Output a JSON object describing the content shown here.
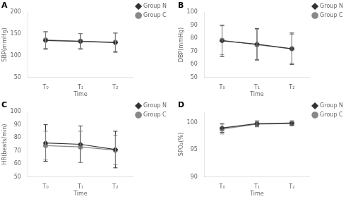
{
  "chart_data": [
    {
      "type": "line",
      "title": "A",
      "x_label": "Time",
      "y_label": "SBP(mmHg)",
      "categories": [
        "T₀",
        "T₁",
        "T₂"
      ],
      "ylim": [
        50,
        200
      ],
      "yticks": [
        50,
        100,
        150,
        200
      ],
      "grid": false,
      "legend": "right",
      "series": [
        {
          "name": "Group N",
          "color": "#333333",
          "marker": "diamond",
          "values": [
            135,
            133,
            130
          ],
          "errors": [
            20,
            18,
            22
          ]
        },
        {
          "name": "Group C",
          "color": "#888888",
          "marker": "circle",
          "values": [
            136,
            133.5,
            131
          ],
          "errors": [
            19,
            17,
            21
          ]
        }
      ]
    },
    {
      "type": "line",
      "title": "B",
      "x_label": "Time",
      "y_label": "DBP(mmHg)",
      "categories": [
        "T₀",
        "T₁",
        "T₂"
      ],
      "ylim": [
        50,
        100
      ],
      "yticks": [
        50,
        60,
        70,
        80,
        90,
        100
      ],
      "grid": false,
      "legend": "right",
      "series": [
        {
          "name": "Group N",
          "color": "#333333",
          "marker": "diamond",
          "values": [
            78,
            75.5,
            72
          ],
          "errors": [
            12,
            12,
            12
          ]
        },
        {
          "name": "Group C",
          "color": "#888888",
          "marker": "circle",
          "values": [
            78.5,
            75,
            72
          ],
          "errors": [
            11,
            12,
            11
          ]
        }
      ]
    },
    {
      "type": "line",
      "title": "C",
      "x_label": "Time",
      "y_label": "HR(beats/min)",
      "categories": [
        "T₀",
        "T₁",
        "T₂"
      ],
      "ylim": [
        50,
        100
      ],
      "yticks": [
        50,
        60,
        70,
        80,
        90,
        100
      ],
      "grid": false,
      "legend": "right",
      "series": [
        {
          "name": "Group N",
          "color": "#333333",
          "marker": "diamond",
          "values": [
            76,
            75,
            71
          ],
          "errors": [
            14,
            14,
            14
          ]
        },
        {
          "name": "Group C",
          "color": "#888888",
          "marker": "circle",
          "values": [
            74,
            73,
            70.5
          ],
          "errors": [
            11,
            12,
            11
          ]
        }
      ]
    },
    {
      "type": "line",
      "title": "D",
      "x_label": "Time",
      "y_label": "SPO₂(%)",
      "categories": [
        "T₀",
        "T₁",
        "T₂"
      ],
      "ylim": [
        90,
        102
      ],
      "yticks": [
        90,
        95,
        100
      ],
      "grid": false,
      "legend": "right",
      "series": [
        {
          "name": "Group N",
          "color": "#333333",
          "marker": "diamond",
          "values": [
            99.0,
            99.8,
            99.9
          ],
          "errors": [
            0.8,
            0.5,
            0.4
          ]
        },
        {
          "name": "Group C",
          "color": "#888888",
          "marker": "circle",
          "values": [
            98.8,
            99.7,
            99.8
          ],
          "errors": [
            0.9,
            0.5,
            0.4
          ]
        }
      ]
    }
  ]
}
